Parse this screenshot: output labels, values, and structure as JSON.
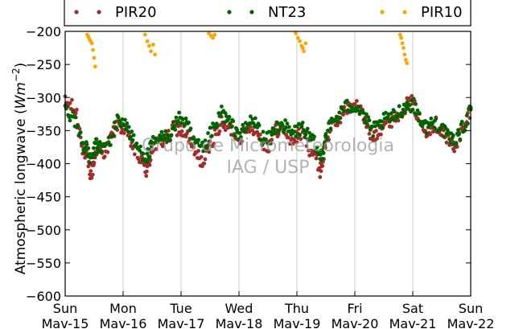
{
  "chart_data": {
    "type": "scatter",
    "ylabel": "Atmospheric longwave",
    "ylabel_unit_base": "Wm",
    "ylabel_unit_exp": "−2",
    "ylim": [
      -600,
      -200
    ],
    "y_ticks": [
      -200,
      -250,
      -300,
      -350,
      -400,
      -450,
      -500,
      -550,
      -600
    ],
    "y_tick_labels": [
      "−200",
      "−250",
      "−300",
      "−350",
      "−400",
      "−450",
      "−500",
      "−550",
      "−600"
    ],
    "x_range_days": [
      0,
      7
    ],
    "x_ticks": [
      {
        "day": 0,
        "weekday": "Sun",
        "date": "Mav-15"
      },
      {
        "day": 1,
        "weekday": "Mon",
        "date": "Mav-16"
      },
      {
        "day": 2,
        "weekday": "Tue",
        "date": "Mav-17"
      },
      {
        "day": 3,
        "weekday": "Wed",
        "date": "Mav-18"
      },
      {
        "day": 4,
        "weekday": "Thu",
        "date": "Mav-19"
      },
      {
        "day": 5,
        "weekday": "Fri",
        "date": "Mav-20"
      },
      {
        "day": 6,
        "weekday": "Sat",
        "date": "Mav-21"
      },
      {
        "day": 7,
        "weekday": "Sun",
        "date": "Mav-22"
      }
    ],
    "grid": "vertical",
    "legend_position": "top",
    "series": [
      {
        "name": "PIR20",
        "color": "#a52a2a",
        "x": [
          0.0,
          0.1,
          0.2,
          0.3,
          0.35,
          0.4,
          0.45,
          0.5,
          0.55,
          0.6,
          0.7,
          0.8,
          0.9,
          1.0,
          1.1,
          1.2,
          1.3,
          1.4,
          1.45,
          1.5,
          1.6,
          1.7,
          1.8,
          1.9,
          2.0,
          2.1,
          2.2,
          2.3,
          2.4,
          2.5,
          2.6,
          2.7,
          2.8,
          2.9,
          3.0,
          3.1,
          3.2,
          3.3,
          3.4,
          3.5,
          3.6,
          3.7,
          3.8,
          3.9,
          4.0,
          4.1,
          4.2,
          4.3,
          4.4,
          4.45,
          4.5,
          4.6,
          4.7,
          4.8,
          4.9,
          5.0,
          5.1,
          5.2,
          5.3,
          5.4,
          5.5,
          5.6,
          5.7,
          5.8,
          5.9,
          6.0,
          6.1,
          6.2,
          6.3,
          6.4,
          6.5,
          6.6,
          6.7,
          6.8,
          6.9,
          7.0
        ],
        "y": [
          -308,
          -312,
          -325,
          -375,
          -385,
          -400,
          -420,
          -395,
          -375,
          -380,
          -380,
          -360,
          -340,
          -345,
          -360,
          -380,
          -395,
          -410,
          -400,
          -375,
          -370,
          -365,
          -360,
          -345,
          -350,
          -355,
          -380,
          -390,
          -400,
          -370,
          -355,
          -340,
          -345,
          -350,
          -360,
          -355,
          -340,
          -350,
          -365,
          -375,
          -355,
          -345,
          -350,
          -365,
          -360,
          -350,
          -375,
          -385,
          -410,
          -395,
          -365,
          -345,
          -335,
          -320,
          -315,
          -310,
          -320,
          -340,
          -360,
          -350,
          -340,
          -335,
          -330,
          -320,
          -310,
          -308,
          -330,
          -350,
          -345,
          -340,
          -350,
          -365,
          -375,
          -360,
          -345,
          -315
        ]
      },
      {
        "name": "NT23",
        "color": "#006400",
        "x": [
          0.0,
          0.1,
          0.2,
          0.3,
          0.35,
          0.4,
          0.45,
          0.5,
          0.55,
          0.6,
          0.7,
          0.8,
          0.9,
          1.0,
          1.1,
          1.2,
          1.3,
          1.4,
          1.45,
          1.5,
          1.6,
          1.7,
          1.8,
          1.9,
          2.0,
          2.1,
          2.2,
          2.3,
          2.4,
          2.5,
          2.6,
          2.7,
          2.8,
          2.9,
          3.0,
          3.1,
          3.2,
          3.3,
          3.4,
          3.5,
          3.6,
          3.7,
          3.8,
          3.9,
          4.0,
          4.1,
          4.2,
          4.3,
          4.4,
          4.45,
          4.5,
          4.6,
          4.7,
          4.8,
          4.9,
          5.0,
          5.1,
          5.2,
          5.3,
          5.4,
          5.5,
          5.6,
          5.7,
          5.8,
          5.9,
          6.0,
          6.1,
          6.2,
          6.3,
          6.4,
          6.5,
          6.6,
          6.7,
          6.8,
          6.9,
          7.0
        ],
        "y": [
          -318,
          -325,
          -340,
          -370,
          -375,
          -385,
          -395,
          -380,
          -370,
          -375,
          -375,
          -360,
          -335,
          -335,
          -350,
          -370,
          -380,
          -390,
          -385,
          -370,
          -365,
          -360,
          -355,
          -340,
          -330,
          -340,
          -365,
          -375,
          -380,
          -355,
          -345,
          -320,
          -335,
          -345,
          -355,
          -350,
          -335,
          -340,
          -360,
          -365,
          -350,
          -340,
          -345,
          -355,
          -350,
          -345,
          -360,
          -370,
          -390,
          -380,
          -355,
          -340,
          -330,
          -318,
          -312,
          -312,
          -318,
          -335,
          -350,
          -345,
          -335,
          -332,
          -328,
          -318,
          -312,
          -310,
          -325,
          -345,
          -340,
          -338,
          -345,
          -360,
          -365,
          -355,
          -340,
          -318
        ]
      },
      {
        "name": "PIR10",
        "color": "#ffa500",
        "x": [
          0.38,
          0.4,
          0.42,
          0.44,
          0.46,
          0.48,
          0.5,
          0.52,
          0.68,
          1.38,
          1.42,
          1.45,
          1.48,
          1.52,
          1.55,
          2.48,
          2.52,
          2.55,
          2.58,
          3.98,
          4.02,
          4.05,
          4.08,
          4.1,
          4.12,
          4.15,
          5.78,
          5.8,
          5.82,
          5.84,
          5.86,
          5.88,
          5.9
        ],
        "y": [
          -205,
          -208,
          -212,
          -215,
          -218,
          -228,
          -240,
          -253,
          -200,
          -205,
          -215,
          -222,
          -230,
          -220,
          -235,
          -203,
          -207,
          -210,
          -205,
          -203,
          -210,
          -215,
          -222,
          -225,
          -230,
          -218,
          -205,
          -210,
          -218,
          -225,
          -235,
          -243,
          -248
        ]
      }
    ]
  },
  "watermark": {
    "line1": "Grupo de Micrometeorologia",
    "line2": "IAG / USP"
  }
}
